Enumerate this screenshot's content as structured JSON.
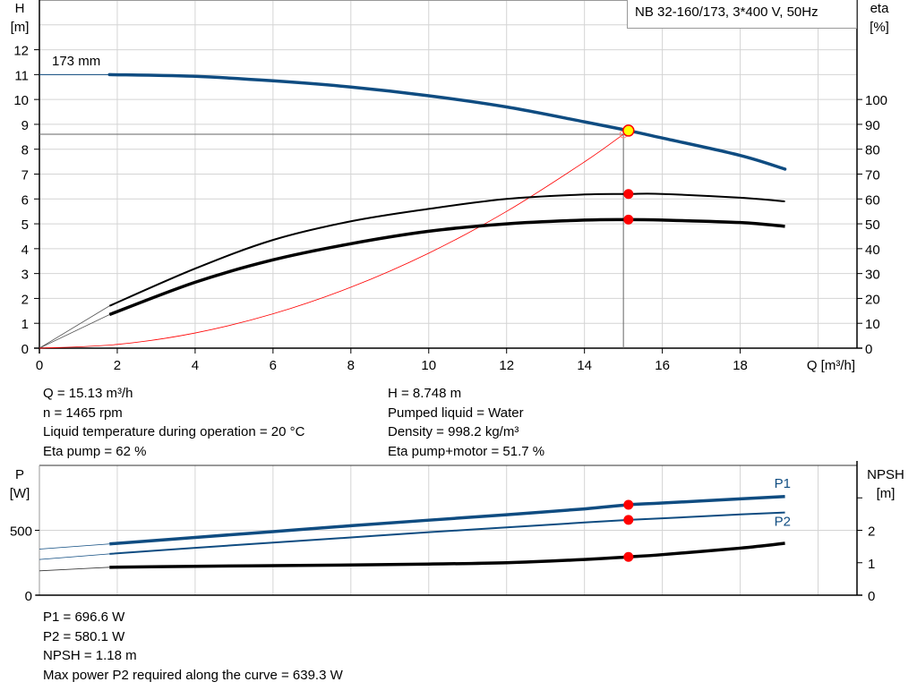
{
  "chart_data": [
    {
      "type": "line",
      "title": "NB 32-160/173, 3*400 V, 50Hz",
      "xlabel": "Q [m³/h]",
      "ylabel": [
        "H",
        "[m]"
      ],
      "y2label": [
        "eta",
        "[%]"
      ],
      "xlim": [
        0,
        21
      ],
      "ylim": [
        0,
        14
      ],
      "y2lim": [
        0,
        140
      ],
      "xticks": [
        0,
        2,
        4,
        6,
        8,
        10,
        12,
        14,
        16,
        18
      ],
      "yticks": [
        0,
        1,
        2,
        3,
        4,
        5,
        6,
        7,
        8,
        9,
        10,
        11,
        12
      ],
      "y2ticks": [
        0,
        10,
        20,
        30,
        40,
        50,
        60,
        70,
        80,
        90,
        100
      ],
      "grid": true,
      "impeller_label": "173 mm",
      "series": [
        {
          "id": "H",
          "axis": "left",
          "color": "#0f4c81",
          "x": [
            1.8,
            4,
            6,
            8,
            10,
            12,
            14,
            15.13,
            16,
            18,
            19.15
          ],
          "y": [
            11.0,
            10.93,
            10.75,
            10.5,
            10.15,
            9.7,
            9.1,
            8.748,
            8.45,
            7.75,
            7.2
          ]
        },
        {
          "id": "eta_pump",
          "axis": "right",
          "color": "#000000",
          "x": [
            1.8,
            4,
            6,
            8,
            10,
            12,
            14,
            15.13,
            16,
            18,
            19.15
          ],
          "y": [
            17,
            32,
            43.5,
            51,
            56,
            60,
            61.8,
            62,
            62,
            60.5,
            59
          ]
        },
        {
          "id": "eta_pump_motor",
          "axis": "right",
          "color": "#000000",
          "x": [
            1.8,
            4,
            6,
            8,
            10,
            12,
            14,
            15.13,
            16,
            18,
            19.15
          ],
          "y": [
            13.5,
            26.5,
            35.5,
            42,
            47,
            50,
            51.5,
            51.7,
            51.5,
            50.5,
            49
          ]
        },
        {
          "id": "system_curve",
          "axis": "left",
          "color": "#ff0000",
          "x": [
            0,
            2,
            4,
            6,
            8,
            10,
            12,
            14,
            15.0
          ],
          "y": [
            0,
            0.15,
            0.61,
            1.38,
            2.45,
            3.82,
            5.5,
            7.49,
            8.6
          ]
        }
      ],
      "operating_point": {
        "Q": 15.13,
        "H": 8.748,
        "eta_pump": 62,
        "eta_total": 51.7
      },
      "cursor": {
        "Q": 15.0,
        "H": 8.6
      }
    },
    {
      "type": "line",
      "ylabel": [
        "P",
        "[W]"
      ],
      "y2label": [
        "NPSH",
        "[m]"
      ],
      "xlim": [
        0,
        21
      ],
      "ylim": [
        0,
        1000
      ],
      "y2lim": [
        0,
        4
      ],
      "yticks": [
        0,
        500
      ],
      "y2ticks": [
        0,
        1,
        2,
        3
      ],
      "y2ticklabels": [
        "0",
        "1",
        "2",
        ""
      ],
      "grid": true,
      "series": [
        {
          "id": "P1",
          "name": "P1",
          "axis": "left",
          "color": "#0f4c81",
          "x": [
            1.8,
            4,
            6,
            8,
            10,
            12,
            14,
            15.13,
            16,
            18,
            19.15
          ],
          "y": [
            395,
            445,
            490,
            535,
            578,
            620,
            665,
            696.6,
            710,
            742,
            760
          ]
        },
        {
          "id": "P2",
          "name": "P2",
          "axis": "left",
          "color": "#0f4c81",
          "x": [
            1.8,
            4,
            6,
            8,
            10,
            12,
            14,
            15.13,
            16,
            18,
            19.15
          ],
          "y": [
            318,
            365,
            405,
            445,
            485,
            522,
            560,
            580.1,
            592,
            622,
            637
          ]
        },
        {
          "id": "NPSH",
          "axis": "right",
          "color": "#000000",
          "x": [
            1.8,
            4,
            6,
            8,
            10,
            12,
            14,
            15.13,
            16,
            18,
            19.15
          ],
          "y": [
            0.86,
            0.89,
            0.91,
            0.93,
            0.96,
            1.0,
            1.1,
            1.18,
            1.25,
            1.45,
            1.6
          ]
        }
      ],
      "extensions": {
        "P1": 355,
        "P2": 275,
        "NPSH": 0.75
      },
      "operating_point": {
        "Q": 15.13,
        "P1": 696.6,
        "P2": 580.1,
        "NPSH": 1.18
      }
    }
  ],
  "info": {
    "left": [
      "Q = 15.13 m³/h",
      "n = 1465 rpm",
      "Liquid temperature during operation = 20 °C",
      "Eta pump = 62 %"
    ],
    "right": [
      "H = 8.748 m",
      "Pumped liquid = Water",
      "Density = 998.2 kg/m³",
      "Eta pump+motor = 51.7 %"
    ],
    "bottom": [
      "P1 = 696.6 W",
      "P2 = 580.1 W",
      "NPSH = 1.18 m",
      "Max power P2 required along the curve = 639.3 W"
    ]
  }
}
